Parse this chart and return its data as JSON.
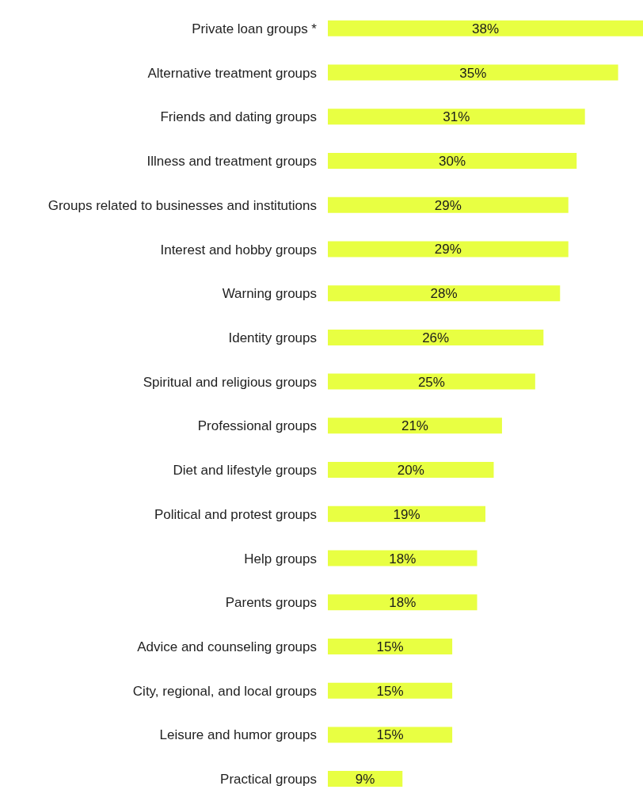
{
  "chart_data": {
    "type": "bar",
    "orientation": "horizontal",
    "tick_labels": "y",
    "categories": [
      "Private loan groups *",
      "Alternative treatment groups",
      "Friends and dating groups",
      "Illness and treatment groups",
      "Groups related to businesses and institutions",
      "Interest and hobby groups",
      "Warning groups",
      "Identity groups",
      "Spiritual and religious groups",
      "Professional groups",
      "Diet and lifestyle groups",
      "Political and protest groups",
      "Help groups",
      "Parents groups",
      "Advice and counseling groups",
      "City, regional, and local groups",
      "Leisure and humor groups",
      "Practical groups"
    ],
    "values": [
      38,
      35,
      31,
      30,
      29,
      29,
      28,
      26,
      25,
      21,
      20,
      19,
      18,
      18,
      15,
      15,
      15,
      9
    ],
    "value_labels": [
      "38%",
      "35%",
      "31%",
      "30%",
      "29%",
      "29%",
      "28%",
      "26%",
      "25%",
      "21%",
      "20%",
      "19%",
      "18%",
      "18%",
      "15%",
      "15%",
      "15%",
      "9%"
    ],
    "color": "#e8ff42"
  }
}
